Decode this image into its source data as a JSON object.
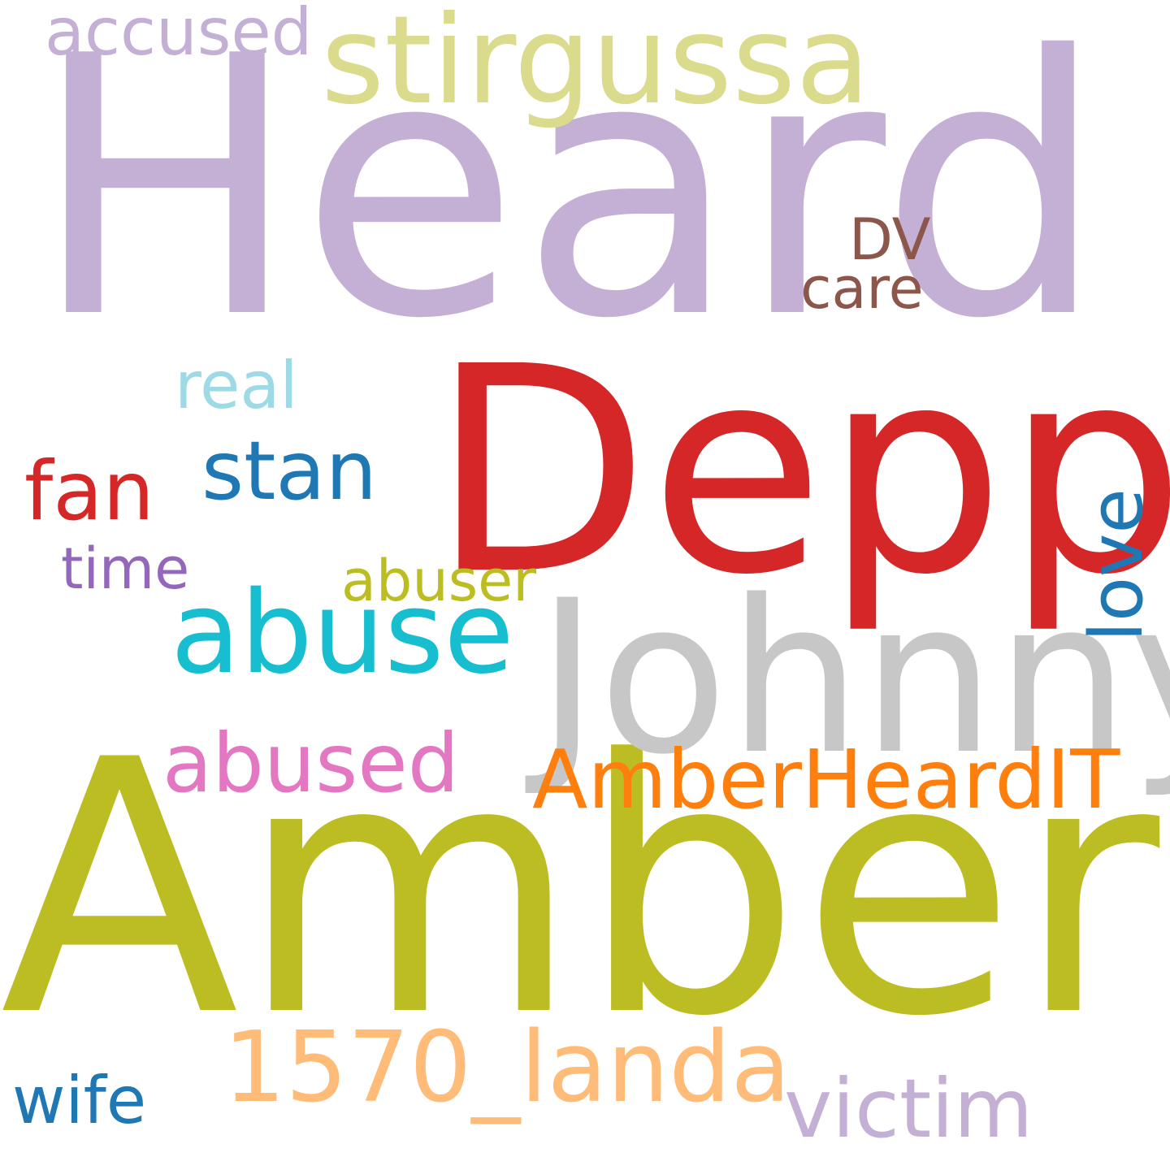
{
  "words": [
    {
      "text": "Heard",
      "color": "#c5b0d5"
    },
    {
      "text": "Amber",
      "color": "#bcbd22"
    },
    {
      "text": "Depp",
      "color": "#d62728"
    },
    {
      "text": "Johnny",
      "color": "#c7c7c7"
    },
    {
      "text": "stirgussa",
      "color": "#dbdb8d"
    },
    {
      "text": "abuse",
      "color": "#17becf"
    },
    {
      "text": "1570_landa",
      "color": "#ffbb78"
    },
    {
      "text": "AmberHeardIT",
      "color": "#ff7f0e"
    },
    {
      "text": "abused",
      "color": "#e377c2"
    },
    {
      "text": "stan",
      "color": "#1f77b4"
    },
    {
      "text": "fan",
      "color": "#d62728"
    },
    {
      "text": "victim",
      "color": "#c5b0d5"
    },
    {
      "text": "accused",
      "color": "#c5b0d5"
    },
    {
      "text": "love",
      "color": "#1f77b4"
    },
    {
      "text": "real",
      "color": "#9edae5"
    },
    {
      "text": "abuser",
      "color": "#bcbd22"
    },
    {
      "text": "time",
      "color": "#9467bd"
    },
    {
      "text": "wife",
      "color": "#1f77b4"
    },
    {
      "text": "care",
      "color": "#8c564b"
    },
    {
      "text": "DV",
      "color": "#8c564b"
    }
  ]
}
